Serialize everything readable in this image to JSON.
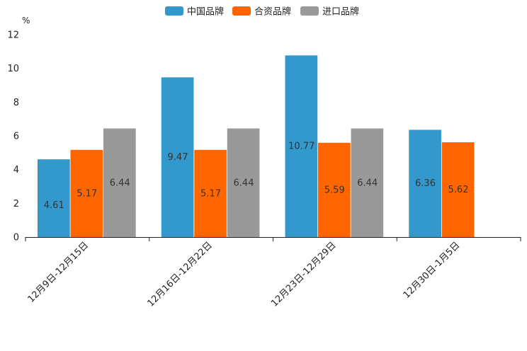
{
  "chart_data": {
    "type": "bar",
    "unit": "%",
    "categories": [
      "12月9日-12月15日",
      "12月16日-12月22日",
      "12月23日-12月29日",
      "12月30日-1月5日"
    ],
    "series": [
      {
        "name": "中国品牌",
        "color": "#3399cc",
        "values": [
          4.61,
          9.47,
          10.77,
          6.36
        ]
      },
      {
        "name": "合资品牌",
        "color": "#ff6600",
        "values": [
          5.17,
          5.17,
          5.59,
          5.62
        ]
      },
      {
        "name": "进口品牌",
        "color": "#999999",
        "values": [
          6.44,
          6.44,
          6.44,
          null
        ]
      }
    ],
    "ylim": [
      0,
      12
    ],
    "yticks": [
      0,
      2,
      4,
      6,
      8,
      10,
      12
    ],
    "legend_position": "top-center",
    "grid": false
  }
}
